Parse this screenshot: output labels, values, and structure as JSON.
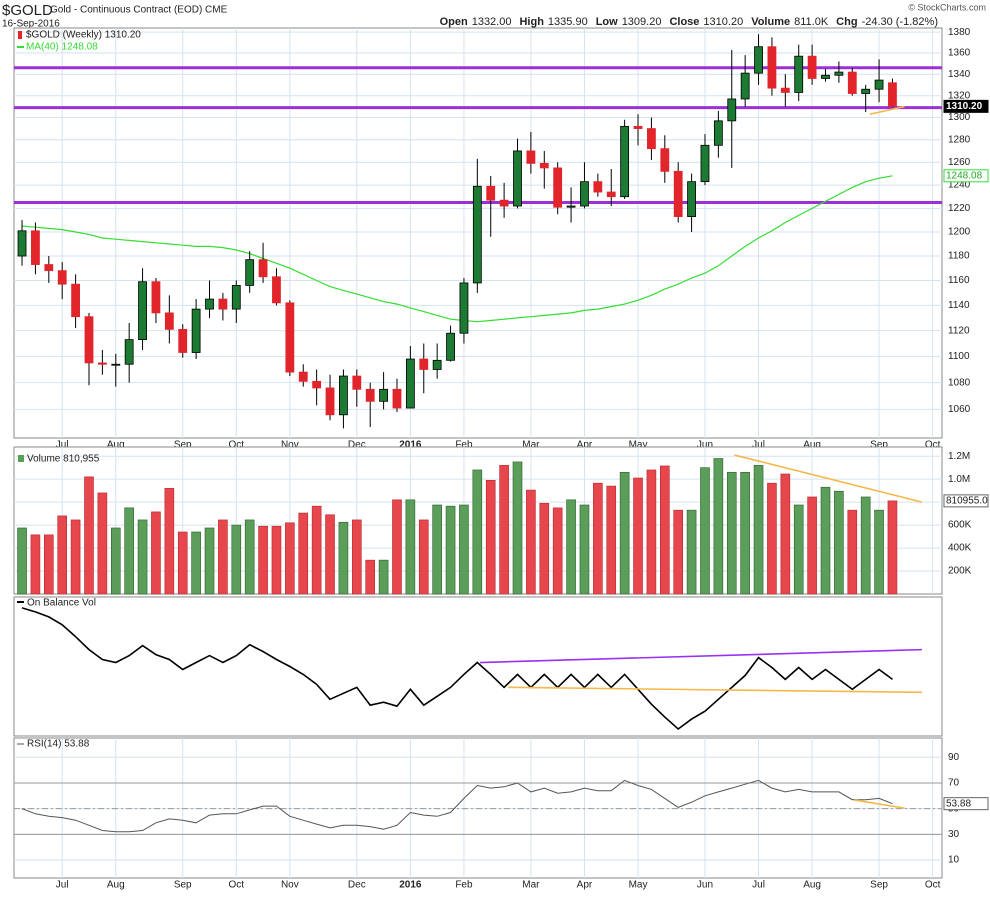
{
  "chart_data": [
    {
      "type": "candlestick",
      "title": "$GOLD",
      "subtitle": "Gold - Continuous Contract (EOD) CME",
      "date": "16-Sep-2016",
      "credit": "© StockCharts.com",
      "quote": [
        {
          "label": "Open",
          "value": "1332.00"
        },
        {
          "label": "High",
          "value": "1335.90"
        },
        {
          "label": "Low",
          "value": "1309.20"
        },
        {
          "label": "Close",
          "value": "1310.20"
        },
        {
          "label": "Volume",
          "value": "811.0K"
        },
        {
          "label": "Chg",
          "value": "-24.30 (-1.82%)"
        }
      ],
      "name": "$GOLD (Weekly) 1310.20",
      "up_color": "#1d7a33",
      "down_color": "#e2242b",
      "open": [
        1180,
        1201,
        1173,
        1168,
        1157,
        1131,
        1095,
        1094,
        1094,
        1113,
        1159,
        1134,
        1121,
        1103,
        1137,
        1145,
        1137,
        1156,
        1177,
        1163,
        1142,
        1088,
        1081,
        1076,
        1056,
        1085,
        1075,
        1066,
        1075,
        1061,
        1098,
        1090,
        1097,
        1118,
        1158,
        1239,
        1227,
        1222,
        1270,
        1259,
        1255,
        1221,
        1222,
        1243,
        1234,
        1230,
        1292,
        1290,
        1272,
        1252,
        1213,
        1243,
        1275,
        1297,
        1317,
        1341,
        1366,
        1327,
        1323,
        1357,
        1336,
        1339,
        1342,
        1322,
        1326,
        1332
      ],
      "high": [
        1210,
        1208,
        1180,
        1175,
        1165,
        1134,
        1105,
        1102,
        1126,
        1170,
        1162,
        1148,
        1125,
        1145,
        1160,
        1150,
        1160,
        1184,
        1191,
        1170,
        1144,
        1094,
        1090,
        1086,
        1090,
        1090,
        1080,
        1088,
        1083,
        1108,
        1110,
        1110,
        1124,
        1162,
        1263,
        1248,
        1242,
        1281,
        1287,
        1270,
        1260,
        1238,
        1260,
        1250,
        1254,
        1298,
        1303,
        1300,
        1284,
        1260,
        1250,
        1285,
        1306,
        1363,
        1358,
        1378,
        1375,
        1340,
        1368,
        1368,
        1345,
        1352,
        1346,
        1330,
        1354,
        1335.9
      ],
      "low": [
        1172,
        1165,
        1158,
        1145,
        1122,
        1078,
        1086,
        1077,
        1080,
        1105,
        1126,
        1110,
        1099,
        1098,
        1130,
        1128,
        1126,
        1150,
        1158,
        1140,
        1085,
        1077,
        1063,
        1052,
        1046,
        1062,
        1047,
        1060,
        1058,
        1061,
        1072,
        1083,
        1096,
        1110,
        1150,
        1196,
        1212,
        1220,
        1250,
        1237,
        1215,
        1208,
        1220,
        1230,
        1222,
        1228,
        1275,
        1262,
        1242,
        1208,
        1200,
        1240,
        1264,
        1255,
        1310,
        1330,
        1320,
        1310,
        1315,
        1330,
        1333,
        1332,
        1320,
        1305,
        1314,
        1309.2
      ],
      "close": [
        1201,
        1173,
        1168,
        1157,
        1131,
        1095,
        1094,
        1094,
        1113,
        1159,
        1134,
        1121,
        1103,
        1137,
        1145,
        1137,
        1156,
        1177,
        1163,
        1142,
        1088,
        1081,
        1076,
        1056,
        1085,
        1075,
        1066,
        1075,
        1061,
        1098,
        1090,
        1097,
        1118,
        1158,
        1239,
        1227,
        1222,
        1270,
        1259,
        1255,
        1221,
        1222,
        1243,
        1234,
        1230,
        1292,
        1290,
        1272,
        1252,
        1213,
        1243,
        1275,
        1297,
        1317,
        1341,
        1366,
        1327,
        1323,
        1357,
        1336,
        1339,
        1342,
        1322,
        1326,
        1334.5,
        1310.2
      ],
      "series": [
        {
          "name": "MA(40) 1248.08",
          "color": "#33dd33",
          "values": [
            1205,
            1204,
            1203,
            1202,
            1200,
            1198,
            1195,
            1194,
            1193,
            1192,
            1191,
            1190,
            1189,
            1188,
            1188,
            1187,
            1185,
            1182,
            1178,
            1174,
            1170,
            1165,
            1160,
            1155,
            1152,
            1149,
            1146,
            1143,
            1141,
            1138,
            1135,
            1132,
            1129,
            1128,
            1127,
            1128,
            1129,
            1130,
            1131,
            1132,
            1133,
            1134,
            1136,
            1137,
            1139,
            1141,
            1144,
            1148,
            1153,
            1157,
            1162,
            1166,
            1172,
            1180,
            1188,
            1195,
            1201,
            1208,
            1214,
            1220,
            1226,
            1232,
            1238,
            1243,
            1246,
            1248.08
          ]
        }
      ],
      "levels": [
        1346,
        1309,
        1225
      ],
      "level_color": "#9b30d9",
      "trendlines": [
        {
          "x": [
            63.3,
            65.9
          ],
          "values": [
            1303,
            1310
          ],
          "color": "#f5b84a"
        }
      ],
      "log": true,
      "ylim": [
        1039,
        1384
      ],
      "yticks": [
        1060,
        1080,
        1100,
        1120,
        1140,
        1160,
        1180,
        1200,
        1220,
        1240,
        1260,
        1280,
        1300,
        1320,
        1340,
        1360,
        1380
      ],
      "xlim": [
        -0.6,
        68.7
      ],
      "xticks": [
        {
          "value": 3,
          "label": "Jul"
        },
        {
          "value": 7,
          "label": "Aug"
        },
        {
          "value": 12,
          "label": "Sep"
        },
        {
          "value": 16,
          "label": "Oct"
        },
        {
          "value": 20,
          "label": "Nov"
        },
        {
          "value": 25,
          "label": "Dec"
        },
        {
          "value": 29,
          "label": "2016",
          "bold": true
        },
        {
          "value": 33,
          "label": "Feb"
        },
        {
          "value": 38,
          "label": "Mar"
        },
        {
          "value": 42,
          "label": "Apr"
        },
        {
          "value": 46,
          "label": "May"
        },
        {
          "value": 51,
          "label": "Jun"
        },
        {
          "value": 55,
          "label": "Jul"
        },
        {
          "value": 59,
          "label": "Aug"
        },
        {
          "value": 64,
          "label": "Sep"
        },
        {
          "value": 68,
          "label": "Oct"
        }
      ],
      "grid": true,
      "tag": "1310.20",
      "ma_tag": "1248.08"
    },
    {
      "type": "bar",
      "title": "Volume 810,955",
      "up_color": "#5a9e5a",
      "down_color": "#e6464c",
      "values": [
        575000,
        515000,
        515000,
        680000,
        645000,
        1020000,
        880000,
        575000,
        750000,
        645000,
        715000,
        920000,
        540000,
        540000,
        575000,
        645000,
        600000,
        645000,
        590000,
        590000,
        620000,
        705000,
        765000,
        690000,
        625000,
        645000,
        295000,
        295000,
        820000,
        820000,
        645000,
        775000,
        765000,
        775000,
        1080000,
        990000,
        1120000,
        1150000,
        905000,
        790000,
        750000,
        820000,
        775000,
        965000,
        940000,
        1060000,
        1010000,
        1080000,
        1115000,
        730000,
        730000,
        1100000,
        1180000,
        1060000,
        1060000,
        1120000,
        965000,
        1045000,
        775000,
        845000,
        930000,
        895000,
        730000,
        845000,
        730000,
        810955
      ],
      "ylim": [
        0,
        1280000
      ],
      "yticks": [
        {
          "value": 200000,
          "label": "200K"
        },
        {
          "value": 400000,
          "label": "400K"
        },
        {
          "value": 600000,
          "label": "600K"
        },
        {
          "value": 800000,
          "label": "800K"
        },
        {
          "value": 1000000,
          "label": "1.0M"
        },
        {
          "value": 1200000,
          "label": "1.2M"
        }
      ],
      "trendlines": [
        {
          "x": [
            53.2,
            67.2
          ],
          "values": [
            1210000,
            800000
          ],
          "color": "#f5b84a"
        }
      ],
      "grid": true,
      "tag": "810955.0"
    },
    {
      "type": "line",
      "title": "On Balance Vol",
      "color": "#000000",
      "values": [
        129,
        125,
        120,
        112,
        100,
        87,
        77,
        74,
        81,
        91,
        82,
        77,
        67,
        74,
        81,
        74,
        81,
        92,
        85,
        77,
        70,
        62,
        52,
        37,
        43,
        49,
        31,
        34,
        30,
        47,
        31,
        40,
        49,
        62,
        74,
        62,
        49,
        62,
        49,
        62,
        49,
        62,
        49,
        62,
        49,
        62,
        47,
        32,
        19,
        7,
        17,
        25,
        37,
        49,
        61,
        79,
        69,
        57,
        69,
        57,
        67,
        57,
        47,
        57,
        67,
        57
      ],
      "ylim": [
        0,
        140
      ],
      "trendlines": [
        {
          "x": [
            34.2,
            67.2
          ],
          "values": [
            74,
            87
          ],
          "color": "#9b30f0"
        },
        {
          "x": [
            36.3,
            67.2
          ],
          "values": [
            49,
            44
          ],
          "color": "#f5b84a"
        }
      ]
    },
    {
      "type": "line",
      "title": "RSI(14) 53.88",
      "color": "#555555",
      "values": [
        50,
        46,
        44,
        43,
        41,
        37,
        33,
        32,
        32,
        33,
        39,
        42,
        41,
        39,
        45,
        46,
        46,
        49,
        52,
        52,
        44,
        41,
        38,
        35,
        37,
        37,
        36,
        34,
        37,
        47,
        45,
        44,
        47,
        58,
        68,
        66,
        67,
        70,
        63,
        66,
        62,
        63,
        66,
        64,
        64,
        72,
        68,
        65,
        58,
        51,
        55,
        60,
        63,
        66,
        69,
        72,
        66,
        63,
        65,
        63,
        63,
        63,
        57,
        57,
        58,
        53.88
      ],
      "ylim": [
        -4,
        105
      ],
      "yticks": [
        10,
        30,
        50,
        70,
        90
      ],
      "levels": [
        30,
        70
      ],
      "midline": 50,
      "level_color": "#999999",
      "trendlines": [
        {
          "x": [
            62.2,
            65.9
          ],
          "values": [
            56.7,
            50.4
          ],
          "color": "#f5b84a"
        }
      ],
      "xticks": [
        {
          "value": 3,
          "label": "Jul"
        },
        {
          "value": 7,
          "label": "Aug"
        },
        {
          "value": 12,
          "label": "Sep"
        },
        {
          "value": 16,
          "label": "Oct"
        },
        {
          "value": 20,
          "label": "Nov"
        },
        {
          "value": 25,
          "label": "Dec"
        },
        {
          "value": 29,
          "label": "2016",
          "bold": true
        },
        {
          "value": 33,
          "label": "Feb"
        },
        {
          "value": 38,
          "label": "Mar"
        },
        {
          "value": 42,
          "label": "Apr"
        },
        {
          "value": 46,
          "label": "May"
        },
        {
          "value": 51,
          "label": "Jun"
        },
        {
          "value": 55,
          "label": "Jul"
        },
        {
          "value": 59,
          "label": "Aug"
        },
        {
          "value": 64,
          "label": "Sep"
        },
        {
          "value": 68,
          "label": "Oct"
        }
      ],
      "grid": true,
      "tag": "53.88"
    }
  ]
}
